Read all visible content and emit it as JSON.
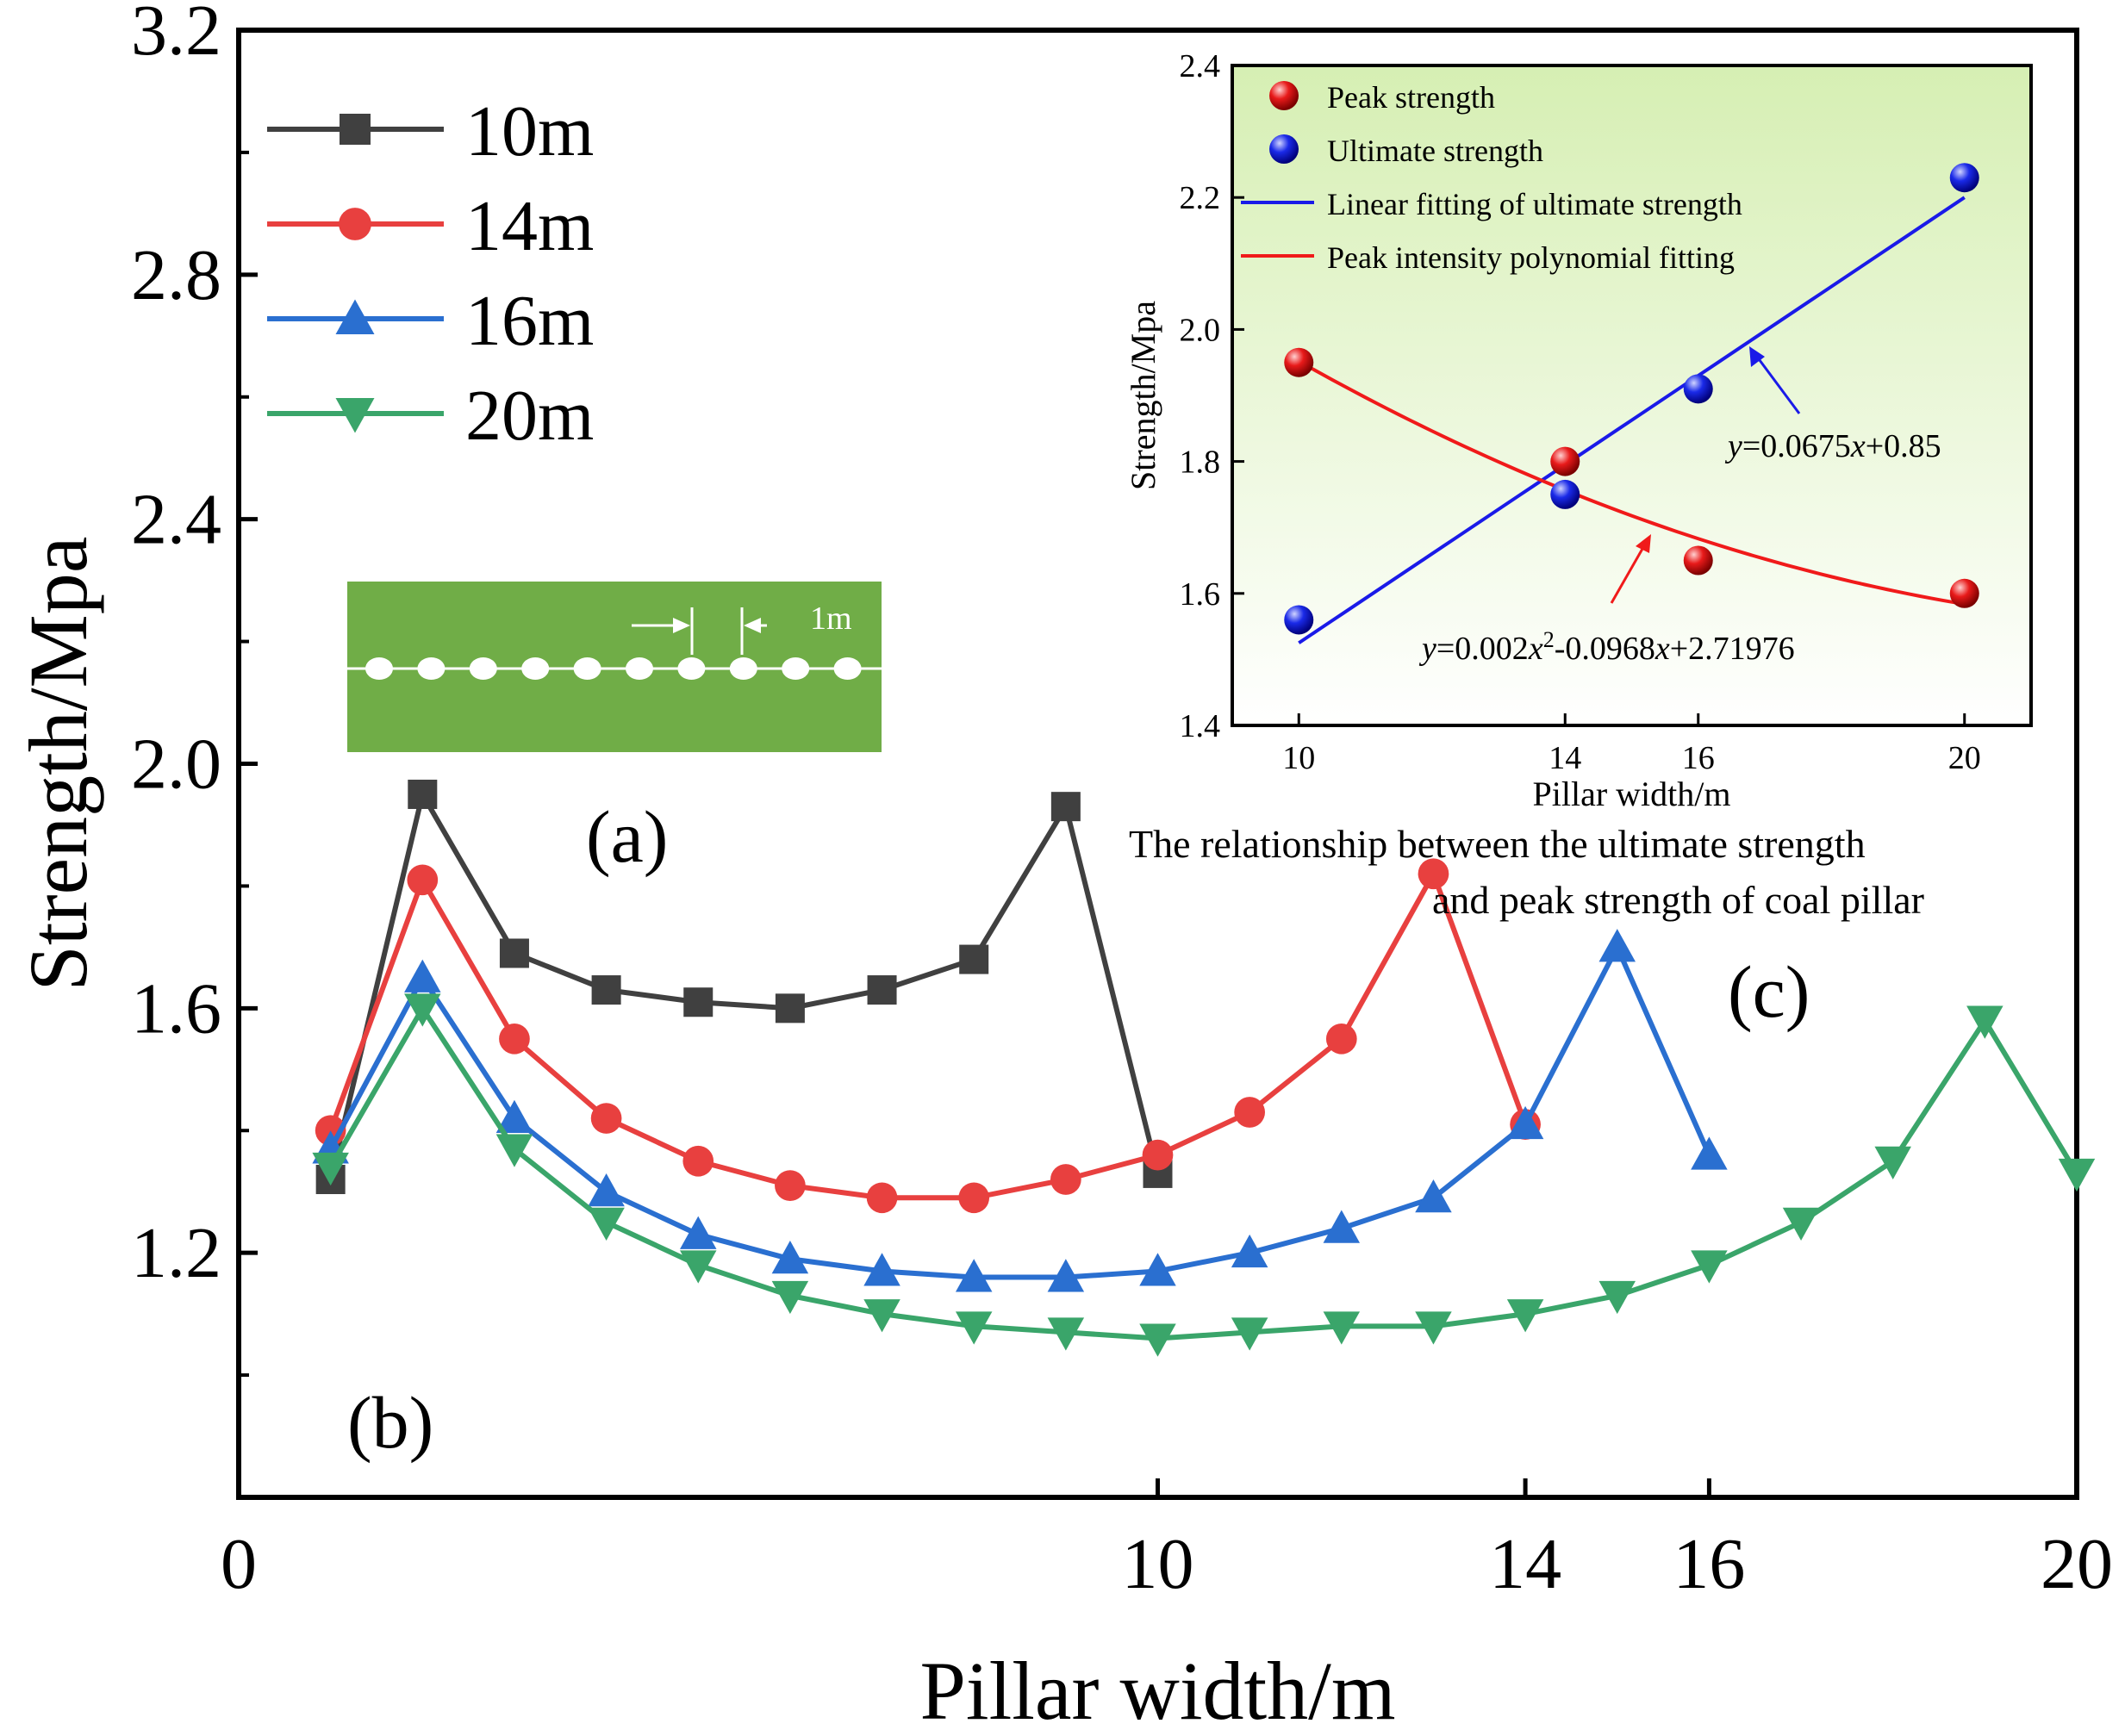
{
  "chart_data": [
    {
      "type": "line",
      "id": "main",
      "xlabel": "Pillar width/m",
      "ylabel": "Strength/Mpa",
      "xlim": [
        0,
        20
      ],
      "ylim": [
        0.8,
        3.2
      ],
      "x_ticks": [
        0,
        10,
        14,
        16,
        20
      ],
      "y_ticks": [
        1.2,
        1.6,
        2.0,
        2.4,
        2.8,
        3.2
      ],
      "y_tick_labels": [
        "1.2",
        "1.6",
        "2.0",
        "2.4",
        "2.8",
        "3.2"
      ],
      "series": [
        {
          "name": "10m",
          "color": "#404040",
          "marker": "square",
          "x": [
            1,
            2,
            3,
            4,
            5,
            6,
            7,
            8,
            9,
            10
          ],
          "y": [
            1.32,
            1.95,
            1.69,
            1.63,
            1.61,
            1.6,
            1.63,
            1.68,
            1.93,
            1.33
          ]
        },
        {
          "name": "14m",
          "color": "#e8403f",
          "marker": "circle",
          "x": [
            1,
            2,
            3,
            4,
            5,
            6,
            7,
            8,
            9,
            10,
            11,
            12,
            13,
            14
          ],
          "y": [
            1.4,
            1.81,
            1.55,
            1.42,
            1.35,
            1.31,
            1.29,
            1.29,
            1.32,
            1.36,
            1.43,
            1.55,
            1.82,
            1.41
          ]
        },
        {
          "name": "16m",
          "color": "#2a6fd0",
          "marker": "triangle-up",
          "x": [
            1,
            2,
            3,
            4,
            5,
            6,
            7,
            8,
            9,
            10,
            11,
            12,
            13,
            14,
            15,
            16
          ],
          "y": [
            1.37,
            1.65,
            1.42,
            1.3,
            1.23,
            1.19,
            1.17,
            1.16,
            1.16,
            1.17,
            1.2,
            1.24,
            1.29,
            1.41,
            1.7,
            1.36
          ]
        },
        {
          "name": "20m",
          "color": "#3aa56a",
          "marker": "triangle-down",
          "x": [
            1,
            2,
            3,
            4,
            5,
            6,
            7,
            8,
            9,
            10,
            11,
            12,
            13,
            14,
            15,
            16,
            17,
            18,
            19,
            20
          ],
          "y": [
            1.34,
            1.6,
            1.37,
            1.25,
            1.18,
            1.13,
            1.1,
            1.08,
            1.07,
            1.06,
            1.07,
            1.08,
            1.08,
            1.1,
            1.13,
            1.18,
            1.25,
            1.35,
            1.58,
            1.33
          ]
        }
      ]
    },
    {
      "type": "scatter",
      "id": "inset",
      "xlabel": "Pillar width/m",
      "ylabel": "Strength/Mpa",
      "xlim": [
        9,
        21
      ],
      "ylim": [
        1.4,
        2.4
      ],
      "x_ticks": [
        10,
        14,
        16,
        20
      ],
      "y_ticks": [
        1.4,
        1.6,
        1.8,
        2.0,
        2.2,
        2.4
      ],
      "y_tick_labels": [
        "1.4",
        "1.6",
        "1.8",
        "2.0",
        "2.2",
        "2.4"
      ],
      "series": [
        {
          "name": "Peak strength",
          "color": "#e81a1a",
          "x": [
            10,
            14,
            16,
            20
          ],
          "y": [
            1.95,
            1.8,
            1.65,
            1.6
          ]
        },
        {
          "name": "Ultimate strength",
          "color": "#1a2ae8",
          "x": [
            10,
            14,
            16,
            20
          ],
          "y": [
            1.56,
            1.75,
            1.91,
            2.23
          ]
        }
      ],
      "fits": [
        {
          "name": "Linear fitting of ultimate strength",
          "color": "#1a1ae8",
          "type": "linear",
          "coef": [
            0.85,
            0.0675
          ],
          "x_range": [
            10,
            20
          ]
        },
        {
          "name": "Peak intensity polynomial fitting",
          "color": "#f01a1a",
          "type": "poly2",
          "coef": [
            2.71976,
            -0.0968,
            0.002
          ],
          "x_range": [
            10,
            20
          ]
        }
      ],
      "equation_linear": {
        "y": "y",
        "mid": "=0.0675",
        "x": "x",
        "tail": "+0.85"
      },
      "equation_poly": {
        "y": "y",
        "a": "=0.002",
        "x1": "x",
        "sup": "2",
        "b": "-0.0968",
        "x2": "x",
        "c": "+2.71976"
      }
    }
  ],
  "labels": {
    "panel_a": "(a)",
    "panel_b": "(b)",
    "panel_c": "(c)",
    "diagram_spacing": "1m",
    "caption_line1": "The relationship between the ultimate strength",
    "caption_line2": "and peak strength of coal pillar"
  },
  "colors": {
    "diagram_bg": "#70ad47",
    "inset_bg_top": "#d6efb3",
    "inset_bg_bottom": "#ffffff"
  }
}
